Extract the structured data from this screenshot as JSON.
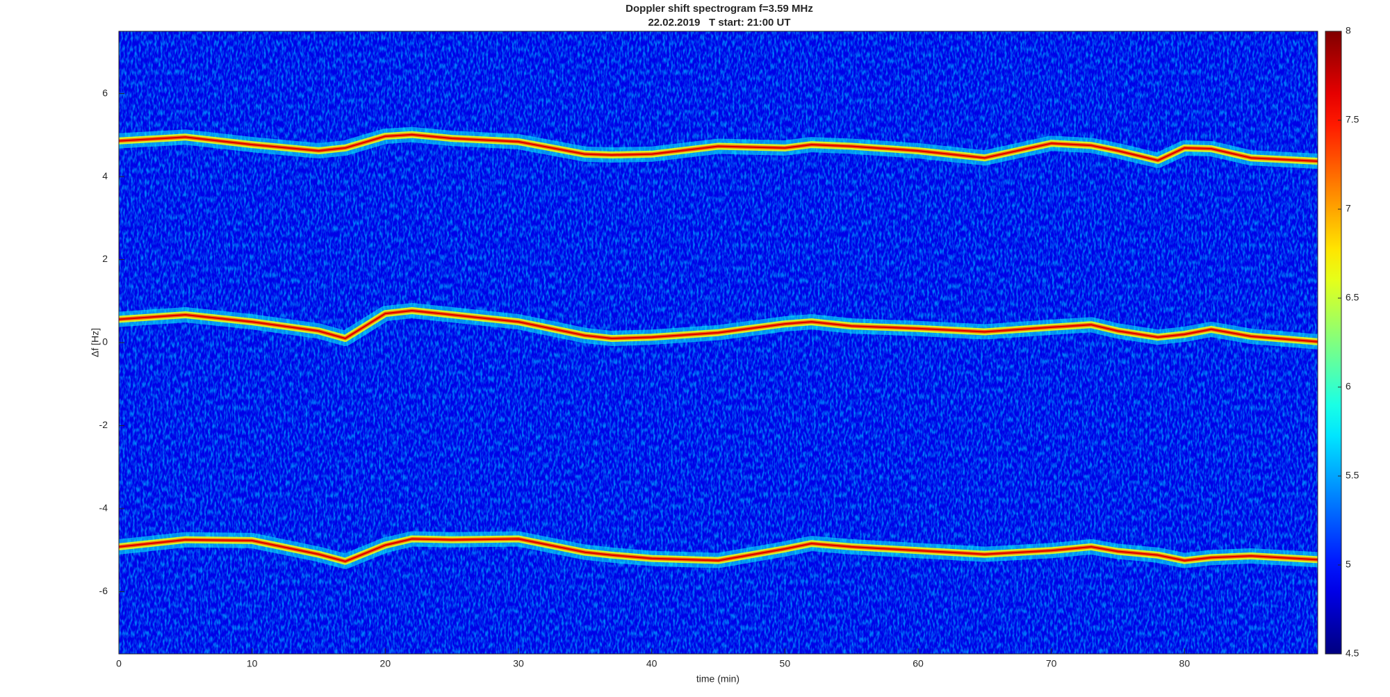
{
  "chart_data": {
    "type": "spectrogram",
    "title": "Doppler shift spectrogram f=3.59 MHz",
    "subtitle": "22.02.2019   T start: 21:00 UT",
    "x_label": "time (min)",
    "y_label": "Δf [Hz]",
    "colormap": "jet",
    "x": [
      0,
      5,
      10,
      15,
      17,
      20,
      22,
      25,
      30,
      35,
      37,
      40,
      45,
      50,
      52,
      55,
      60,
      65,
      70,
      73,
      75,
      78,
      80,
      82,
      85,
      90
    ],
    "series": [
      {
        "values": [
          4.86,
          4.95,
          4.77,
          4.62,
          4.69,
          4.97,
          5.01,
          4.92,
          4.84,
          4.54,
          4.52,
          4.54,
          4.73,
          4.69,
          4.77,
          4.73,
          4.62,
          4.45,
          4.8,
          4.75,
          4.62,
          4.39,
          4.69,
          4.67,
          4.45,
          4.37
        ]
      },
      {
        "values": [
          0.56,
          0.67,
          0.5,
          0.28,
          0.1,
          0.7,
          0.77,
          0.67,
          0.5,
          0.17,
          0.1,
          0.13,
          0.24,
          0.45,
          0.5,
          0.4,
          0.34,
          0.26,
          0.37,
          0.43,
          0.28,
          0.13,
          0.2,
          0.32,
          0.15,
          0.02
        ]
      },
      {
        "values": [
          -4.92,
          -4.75,
          -4.77,
          -5.1,
          -5.27,
          -4.88,
          -4.73,
          -4.75,
          -4.73,
          -5.05,
          -5.12,
          -5.2,
          -5.25,
          -4.97,
          -4.84,
          -4.92,
          -5.01,
          -5.1,
          -5.01,
          -4.92,
          -5.03,
          -5.12,
          -5.25,
          -5.18,
          -5.14,
          -5.23
        ]
      }
    ],
    "xlim": [
      0,
      90
    ],
    "xticks": [
      0,
      10,
      20,
      30,
      40,
      50,
      60,
      70,
      80
    ],
    "ylim": [
      -7.5,
      7.5
    ],
    "yticks": [
      -6,
      -4,
      -2,
      0,
      2,
      4,
      6
    ],
    "clim": [
      4.5,
      8
    ],
    "cticks": [
      4.5,
      5,
      5.5,
      6,
      6.5,
      7,
      7.5,
      8
    ]
  }
}
